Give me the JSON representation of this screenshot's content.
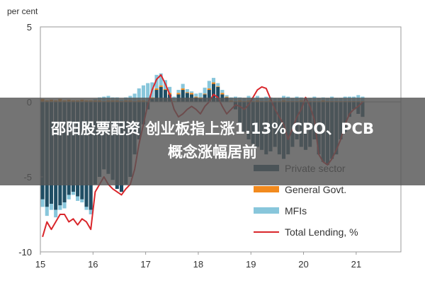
{
  "chart_data": {
    "type": "bar",
    "stacked": true,
    "unit_label": "per cent",
    "y_ticks": [
      "5",
      "0",
      "-5",
      "-10"
    ],
    "y_tick_values": [
      5,
      0,
      -5,
      -10
    ],
    "x_ticks": [
      "15",
      "16",
      "17",
      "18",
      "19",
      "20",
      "21"
    ],
    "x_tick_values": [
      15,
      16,
      17,
      18,
      19,
      20,
      21
    ],
    "xlim": [
      15,
      21.85
    ],
    "ylim": [
      -10,
      5
    ],
    "grid": false,
    "legend_position": "bottom-right",
    "period_step": 0.0833,
    "x_start": 15.0,
    "series": [
      {
        "name": "Private sector",
        "kind": "bar",
        "color": "#1f4e64",
        "values": [
          -6.5,
          -7.0,
          -6.8,
          -7.2,
          -6.9,
          -6.7,
          -6.2,
          -6.0,
          -6.3,
          -6.5,
          -7.0,
          -7.2,
          -5.5,
          -5.0,
          -4.5,
          -4.8,
          -5.2,
          -5.8,
          -6.0,
          -5.5,
          -5.0,
          -3.5,
          -2.5,
          -1.5,
          -0.5,
          0.2,
          0.8,
          1.0,
          0.8,
          0.5,
          0.0,
          0.5,
          0.8,
          0.6,
          0.5,
          0.3,
          0.2,
          0.5,
          0.8,
          1.2,
          1.0,
          0.5,
          0.3,
          0.0,
          -0.5,
          -1.5,
          -2.0,
          -2.5,
          -2.8,
          -3.0,
          -3.2,
          -3.5,
          -3.3,
          -3.0,
          -3.5,
          -3.8,
          -3.5,
          -3.0,
          -2.5,
          -3.0,
          -3.2,
          -3.0,
          -2.5,
          -3.5,
          -4.0,
          -4.2,
          -3.8,
          -3.5,
          -2.5,
          -2.0,
          -1.0,
          -0.5,
          -0.8,
          -1.0
        ],
        "labeled": true
      },
      {
        "name": "General Govt.",
        "kind": "bar",
        "color": "#f28a1e",
        "values": [
          0.2,
          0.1,
          0.15,
          0.1,
          0.2,
          0.1,
          0.15,
          0.1,
          0.1,
          0.15,
          0.1,
          0.1,
          0.1,
          0.1,
          0.05,
          0.1,
          0.1,
          0.1,
          0.05,
          0.1,
          0.1,
          0.05,
          0.1,
          0.1,
          0.05,
          0.1,
          0.1,
          0.1,
          0.05,
          0.1,
          0.05,
          0.1,
          0.1,
          0.05,
          0.1,
          0.05,
          0.1,
          0.05,
          0.1,
          0.1,
          0.05,
          0.1,
          0.05,
          0.1,
          0.05,
          0.1,
          0.05,
          0.1,
          0.05,
          0.1,
          0.05,
          0.05,
          0.1,
          0.05,
          0.05,
          0.1,
          0.05,
          0.05,
          0.05,
          0.1,
          0.05,
          0.05,
          0.05,
          0.05,
          0.1,
          0.05,
          0.05,
          0.05,
          0.05,
          0.05,
          0.05,
          0.05,
          0.05,
          0.05
        ],
        "labeled": true
      },
      {
        "name": "MFIs",
        "kind": "bar",
        "color": "#88c6db",
        "values": [
          -0.5,
          -0.6,
          -0.4,
          -0.5,
          -0.3,
          -0.4,
          -0.3,
          -0.2,
          -0.3,
          -0.2,
          -0.2,
          -0.3,
          0.1,
          0.2,
          0.3,
          0.3,
          0.2,
          0.2,
          0.1,
          0.2,
          0.3,
          0.5,
          0.8,
          1.0,
          1.2,
          1.0,
          0.9,
          0.8,
          0.6,
          0.4,
          0.3,
          0.2,
          0.3,
          0.2,
          0.1,
          0.2,
          0.3,
          0.4,
          0.5,
          0.3,
          0.2,
          0.2,
          0.1,
          0.2,
          0.3,
          0.2,
          0.2,
          0.3,
          0.2,
          0.3,
          0.2,
          0.3,
          0.2,
          0.2,
          0.2,
          0.3,
          0.3,
          0.2,
          0.3,
          0.2,
          0.2,
          0.2,
          0.3,
          0.2,
          0.2,
          0.2,
          0.3,
          0.2,
          0.2,
          0.3,
          0.3,
          0.3,
          0.4,
          0.3
        ],
        "labeled": true
      },
      {
        "name": "Total Lending, %",
        "kind": "line",
        "color": "#d9262b",
        "values": [
          -9.0,
          -8.0,
          -8.5,
          -8.0,
          -7.5,
          -7.5,
          -8.0,
          -7.8,
          -8.2,
          -7.8,
          -8.0,
          -8.5,
          -6.0,
          -5.5,
          -5.0,
          -5.5,
          -5.8,
          -6.0,
          -6.2,
          -5.8,
          -5.5,
          -4.5,
          -2.8,
          -1.5,
          -0.2,
          0.8,
          1.5,
          1.8,
          1.2,
          0.5,
          -0.5,
          -1.0,
          -0.8,
          -0.5,
          -0.3,
          -0.5,
          -0.8,
          -0.3,
          0.0,
          0.5,
          0.3,
          -0.3,
          -0.8,
          -0.5,
          -0.2,
          -0.3,
          -0.5,
          -0.2,
          0.3,
          0.8,
          1.0,
          0.9,
          0.2,
          -0.5,
          -1.0,
          -1.5,
          -2.5,
          -1.8,
          -1.0,
          -0.5,
          0.3,
          -0.3,
          -1.2,
          -3.5,
          -4.0,
          -4.2,
          -3.8,
          -3.2,
          -2.5,
          -1.5,
          -0.8,
          -0.5,
          -0.3,
          0.0
        ],
        "labeled": true
      }
    ]
  },
  "overlay": {
    "line1": "邵阳股票配资 创业板指上涨1.13% CPO、PCB",
    "line2": "概念涨幅居前"
  }
}
